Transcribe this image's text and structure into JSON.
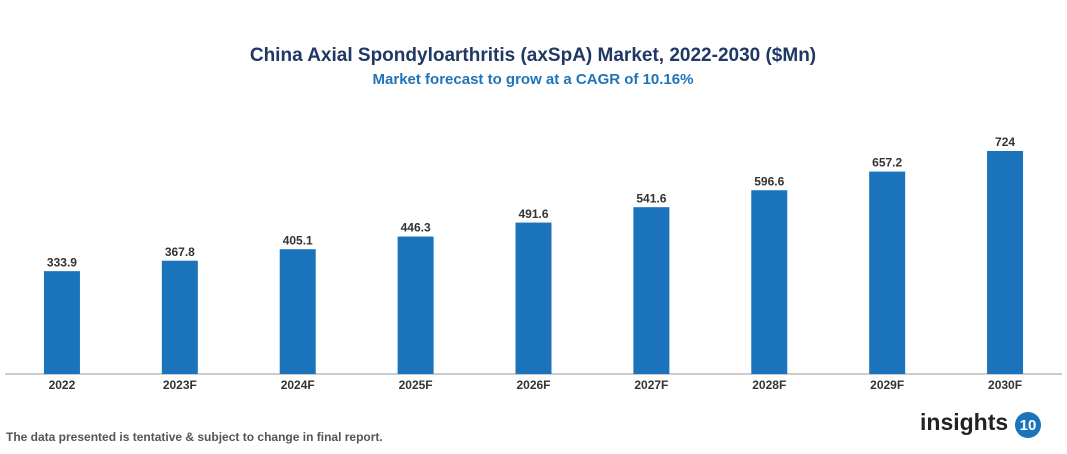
{
  "chart_data": {
    "type": "bar",
    "title": "China Axial Spondyloarthritis (axSpA) Market, 2022-2030 ($Mn)",
    "subtitle": "Market forecast to grow at a CAGR of 10.16%",
    "categories": [
      "2022",
      "2023F",
      "2024F",
      "2025F",
      "2026F",
      "2027F",
      "2028F",
      "2029F",
      "2030F"
    ],
    "values": [
      333.9,
      367.8,
      405.1,
      446.3,
      491.6,
      541.6,
      596.6,
      657.2,
      724
    ],
    "color": "#1a73bb"
  },
  "footer": {
    "note": "The data presented is tentative & subject to change in final report.",
    "logo": {
      "text": "insights",
      "badge": "10"
    }
  }
}
